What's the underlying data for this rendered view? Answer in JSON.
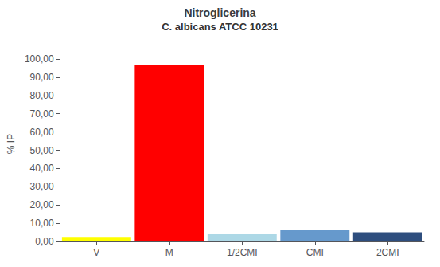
{
  "chart_data": {
    "type": "bar",
    "title": "Nitroglicerina",
    "subtitle": "C. albicans ATCC 10231",
    "y_label": "% IP",
    "categories": [
      "V",
      "M",
      "1/2CMI",
      "CMI",
      "2CMI"
    ],
    "values": [
      2.5,
      97.0,
      4.0,
      6.5,
      5.0
    ],
    "colors": [
      "#FFFF00",
      "#FF0000",
      "#ADD8E6",
      "#6699CC",
      "#2E4E7E"
    ],
    "ylim": [
      0,
      107
    ],
    "yticks": [
      {
        "value": 0,
        "label": "0,00"
      },
      {
        "value": 10,
        "label": "10,00"
      },
      {
        "value": 20,
        "label": "20,00"
      },
      {
        "value": 30,
        "label": "30,00"
      },
      {
        "value": 40,
        "label": "40,00"
      },
      {
        "value": 50,
        "label": "50,00"
      },
      {
        "value": 60,
        "label": "60,00"
      },
      {
        "value": 70,
        "label": "70,00"
      },
      {
        "value": 80,
        "label": "80,00"
      },
      {
        "value": 90,
        "label": "90,00"
      },
      {
        "value": 100,
        "label": "100,00"
      }
    ],
    "grid": false
  }
}
